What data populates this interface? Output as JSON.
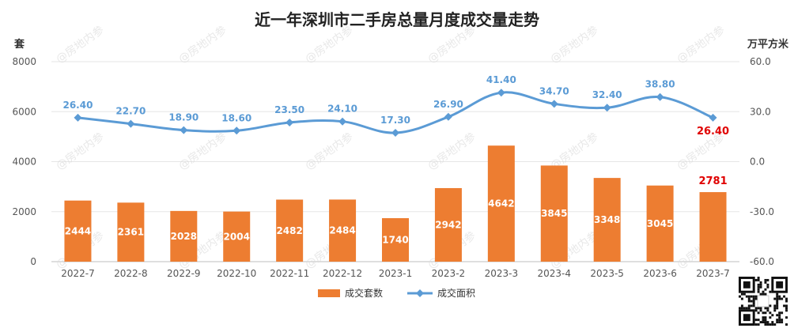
{
  "chart_data": {
    "type": "bar",
    "title": "近一年深圳市二手房总量月度成交量走势",
    "categories": [
      "2022-7",
      "2022-8",
      "2022-9",
      "2022-10",
      "2022-11",
      "2022-12",
      "2023-1",
      "2023-2",
      "2023-3",
      "2023-4",
      "2023-5",
      "2023-6",
      "2023-7"
    ],
    "series": [
      {
        "name": "成交套数",
        "type": "bar",
        "axis": "left",
        "color": "#ed7d31",
        "values": [
          2444,
          2361,
          2028,
          2004,
          2482,
          2484,
          1740,
          2942,
          4642,
          3845,
          3348,
          3045,
          2781
        ]
      },
      {
        "name": "成交面积",
        "type": "line",
        "axis": "right",
        "color": "#5b9bd5",
        "values": [
          26.4,
          22.7,
          18.9,
          18.6,
          23.5,
          24.1,
          17.3,
          26.9,
          41.4,
          34.7,
          32.4,
          38.8,
          26.4
        ]
      }
    ],
    "left_axis": {
      "unit": "套",
      "ylim": [
        0,
        8000
      ],
      "ticks": [
        "0",
        "2000",
        "4000",
        "6000",
        "8000"
      ]
    },
    "right_axis": {
      "unit": "万平方米",
      "ylim": [
        -60,
        60
      ],
      "ticks": [
        "-60.0",
        "-30.0",
        "0.0",
        "30.0",
        "60.0"
      ]
    },
    "bar_labels": [
      "2444",
      "2361",
      "2028",
      "2004",
      "2482",
      "2484",
      "1740",
      "2942",
      "4642",
      "3845",
      "3348",
      "3045",
      "2781"
    ],
    "line_labels": [
      "26.40",
      "22.70",
      "18.90",
      "18.60",
      "23.50",
      "24.10",
      "17.30",
      "26.90",
      "41.40",
      "34.70",
      "32.40",
      "38.80",
      "26.40"
    ],
    "highlight_index": 12,
    "highlight_color": "#e00000",
    "legend": [
      "成交套数",
      "成交面积"
    ],
    "legend_position": "bottom",
    "grid": true,
    "watermark_text": "@房地内参"
  }
}
